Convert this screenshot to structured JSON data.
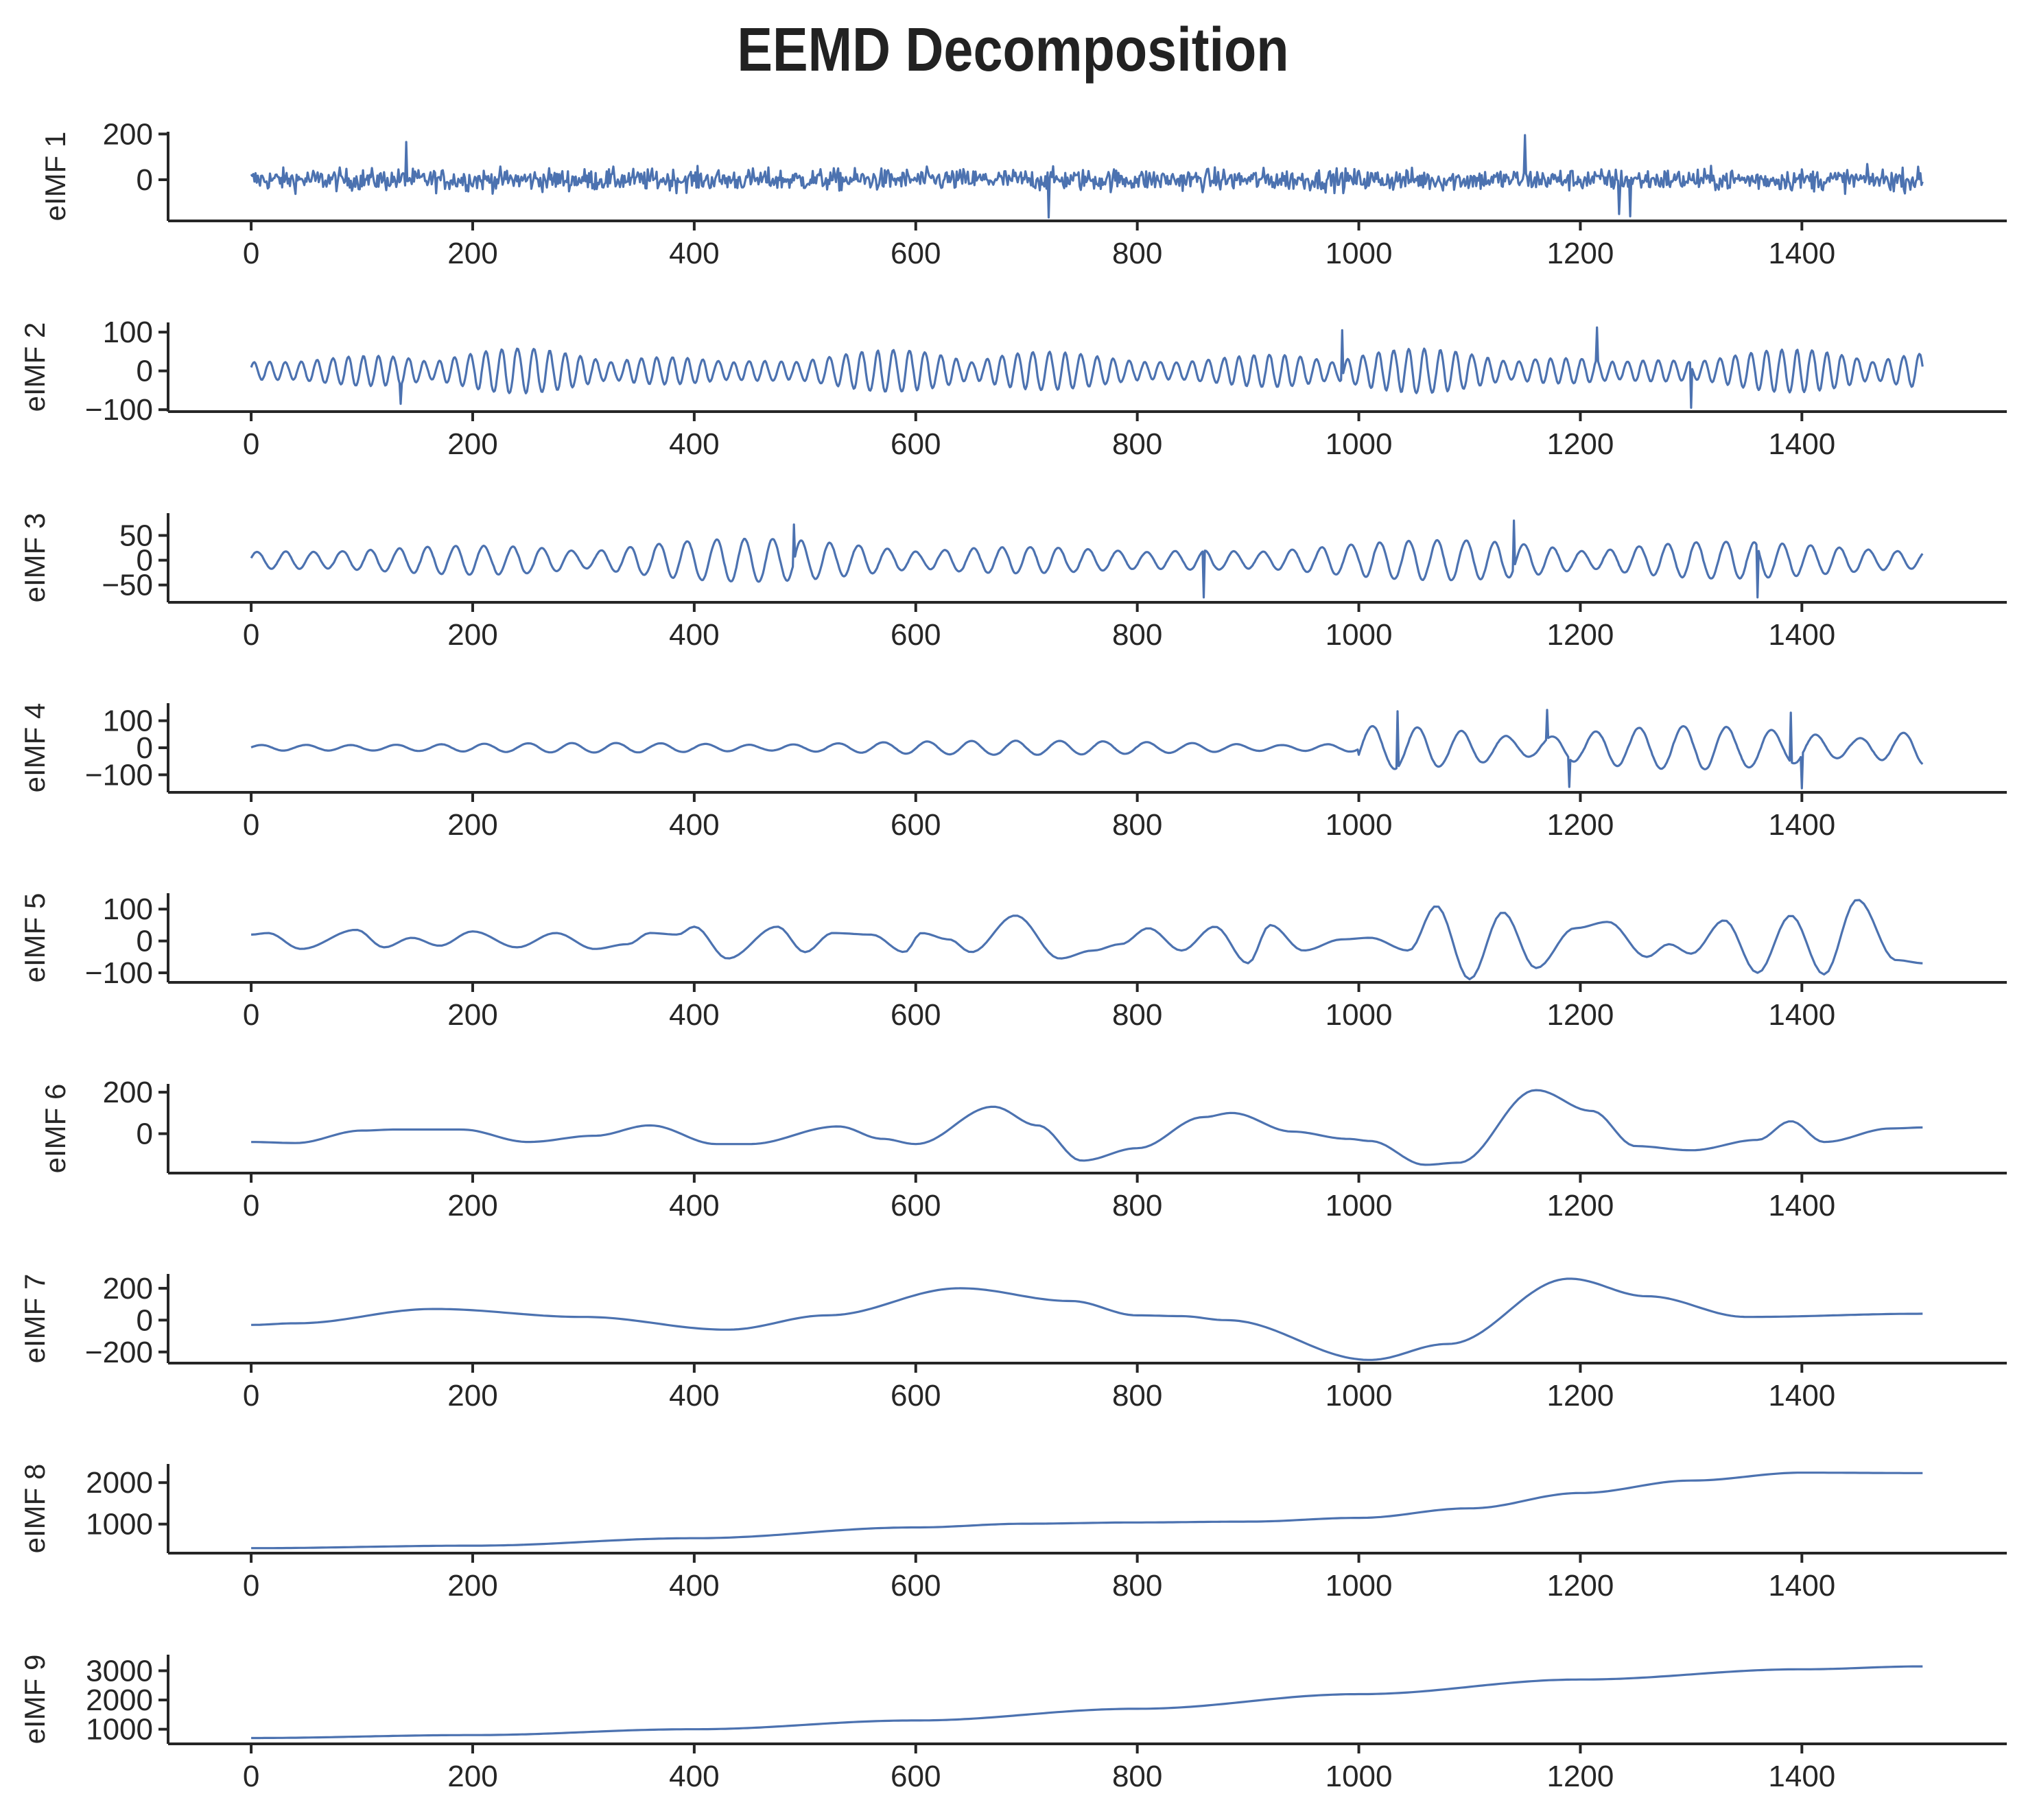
{
  "chart_data": {
    "type": "line",
    "title": "EEMD Decomposition",
    "color": "#4c72b0",
    "n_points": 1510,
    "xlim": [
      -75,
      1585
    ],
    "xticks": [
      0,
      200,
      400,
      600,
      800,
      1000,
      1200,
      1400
    ],
    "panels": [
      {
        "ylabel": "eIMF 1",
        "ylim": [
          -180,
          210
        ],
        "yticks": [
          0,
          200
        ],
        "signal": {
          "kind": "noise",
          "amp": 45,
          "spikes": [
            [
              1150,
              195
            ],
            [
              720,
              -165
            ],
            [
              140,
              165
            ],
            [
              1245,
              -160
            ],
            [
              1235,
              -150
            ]
          ]
        }
      },
      {
        "ylabel": "eIMF 2",
        "ylim": [
          -105,
          125
        ],
        "yticks": [
          -100,
          0,
          100
        ],
        "signal": {
          "kind": "osc",
          "period": 14,
          "amp": 40,
          "spikes": [
            [
              985,
              105
            ],
            [
              1215,
              112
            ],
            [
              1300,
              -95
            ],
            [
              135,
              -85
            ]
          ]
        }
      },
      {
        "ylabel": "eIMF 3",
        "ylim": [
          -85,
          95
        ],
        "yticks": [
          -50,
          0,
          50
        ],
        "signal": {
          "kind": "osc",
          "period": 26,
          "amp": 30,
          "spikes": [
            [
              490,
              72
            ],
            [
              860,
              -75
            ],
            [
              1140,
              80
            ],
            [
              1360,
              -75
            ]
          ]
        }
      },
      {
        "ylabel": "eIMF 4",
        "ylim": [
          -165,
          165
        ],
        "yticks": [
          -100,
          0,
          100
        ],
        "signal": {
          "kind": "osc",
          "period": 40,
          "amp": 18,
          "bursts": [
            [
              1000,
              1510,
              80
            ]
          ],
          "spikes": [
            [
              1035,
              135
            ],
            [
              1170,
              140
            ],
            [
              1190,
              -145
            ],
            [
              1400,
              -150
            ],
            [
              1390,
              130
            ]
          ]
        }
      },
      {
        "ylabel": "eIMF 5",
        "ylim": [
          -130,
          150
        ],
        "yticks": [
          -100,
          0,
          100
        ],
        "knots": [
          [
            0,
            20
          ],
          [
            15,
            25
          ],
          [
            45,
            -25
          ],
          [
            95,
            35
          ],
          [
            120,
            -20
          ],
          [
            145,
            10
          ],
          [
            170,
            -15
          ],
          [
            200,
            30
          ],
          [
            240,
            -20
          ],
          [
            275,
            25
          ],
          [
            310,
            -25
          ],
          [
            340,
            -10
          ],
          [
            360,
            25
          ],
          [
            385,
            20
          ],
          [
            400,
            45
          ],
          [
            430,
            -55
          ],
          [
            475,
            45
          ],
          [
            500,
            -35
          ],
          [
            525,
            25
          ],
          [
            560,
            20
          ],
          [
            590,
            -35
          ],
          [
            605,
            25
          ],
          [
            630,
            5
          ],
          [
            650,
            -35
          ],
          [
            690,
            80
          ],
          [
            730,
            -55
          ],
          [
            760,
            -30
          ],
          [
            785,
            -10
          ],
          [
            810,
            40
          ],
          [
            840,
            -30
          ],
          [
            870,
            45
          ],
          [
            900,
            -70
          ],
          [
            920,
            50
          ],
          [
            950,
            -30
          ],
          [
            985,
            5
          ],
          [
            1010,
            10
          ],
          [
            1045,
            -30
          ],
          [
            1070,
            110
          ],
          [
            1100,
            -120
          ],
          [
            1130,
            90
          ],
          [
            1160,
            -85
          ],
          [
            1195,
            40
          ],
          [
            1225,
            60
          ],
          [
            1260,
            -50
          ],
          [
            1280,
            -10
          ],
          [
            1300,
            -40
          ],
          [
            1330,
            65
          ],
          [
            1360,
            -100
          ],
          [
            1390,
            80
          ],
          [
            1420,
            -105
          ],
          [
            1450,
            130
          ],
          [
            1485,
            -60
          ],
          [
            1510,
            -70
          ]
        ]
      },
      {
        "ylabel": "eIMF 6",
        "ylim": [
          -190,
          240
        ],
        "yticks": [
          0,
          200
        ],
        "knots": [
          [
            0,
            -40
          ],
          [
            40,
            -45
          ],
          [
            100,
            15
          ],
          [
            130,
            20
          ],
          [
            190,
            20
          ],
          [
            250,
            -40
          ],
          [
            310,
            -10
          ],
          [
            360,
            40
          ],
          [
            420,
            -50
          ],
          [
            450,
            -50
          ],
          [
            530,
            35
          ],
          [
            570,
            -25
          ],
          [
            600,
            -50
          ],
          [
            670,
            130
          ],
          [
            710,
            40
          ],
          [
            750,
            -130
          ],
          [
            800,
            -70
          ],
          [
            860,
            80
          ],
          [
            885,
            100
          ],
          [
            940,
            10
          ],
          [
            990,
            -25
          ],
          [
            1010,
            -35
          ],
          [
            1060,
            -150
          ],
          [
            1090,
            -140
          ],
          [
            1160,
            210
          ],
          [
            1210,
            110
          ],
          [
            1250,
            -60
          ],
          [
            1300,
            -80
          ],
          [
            1360,
            -30
          ],
          [
            1390,
            60
          ],
          [
            1420,
            -40
          ],
          [
            1480,
            25
          ],
          [
            1510,
            30
          ]
        ]
      },
      {
        "ylabel": "eIMF 7",
        "ylim": [
          -270,
          290
        ],
        "yticks": [
          -200,
          0,
          200
        ],
        "knots": [
          [
            0,
            -30
          ],
          [
            40,
            -20
          ],
          [
            165,
            70
          ],
          [
            300,
            20
          ],
          [
            430,
            -60
          ],
          [
            520,
            30
          ],
          [
            640,
            200
          ],
          [
            740,
            120
          ],
          [
            800,
            30
          ],
          [
            840,
            25
          ],
          [
            880,
            0
          ],
          [
            1010,
            -250
          ],
          [
            1080,
            -150
          ],
          [
            1190,
            260
          ],
          [
            1260,
            150
          ],
          [
            1350,
            20
          ],
          [
            1510,
            40
          ]
        ]
      },
      {
        "ylabel": "eIMF 8",
        "ylim": [
          300,
          2450
        ],
        "yticks": [
          1000,
          2000
        ],
        "knots": [
          [
            0,
            420
          ],
          [
            200,
            480
          ],
          [
            400,
            660
          ],
          [
            600,
            920
          ],
          [
            700,
            1010
          ],
          [
            800,
            1040
          ],
          [
            900,
            1060
          ],
          [
            1000,
            1150
          ],
          [
            1100,
            1380
          ],
          [
            1200,
            1750
          ],
          [
            1300,
            2050
          ],
          [
            1400,
            2240
          ],
          [
            1510,
            2230
          ]
        ]
      },
      {
        "ylabel": "eIMF 9",
        "ylim": [
          500,
          3550
        ],
        "yticks": [
          1000,
          2000,
          3000
        ],
        "knots": [
          [
            0,
            700
          ],
          [
            200,
            800
          ],
          [
            400,
            1000
          ],
          [
            600,
            1300
          ],
          [
            800,
            1700
          ],
          [
            1000,
            2200
          ],
          [
            1200,
            2700
          ],
          [
            1400,
            3050
          ],
          [
            1510,
            3150
          ]
        ]
      }
    ]
  }
}
